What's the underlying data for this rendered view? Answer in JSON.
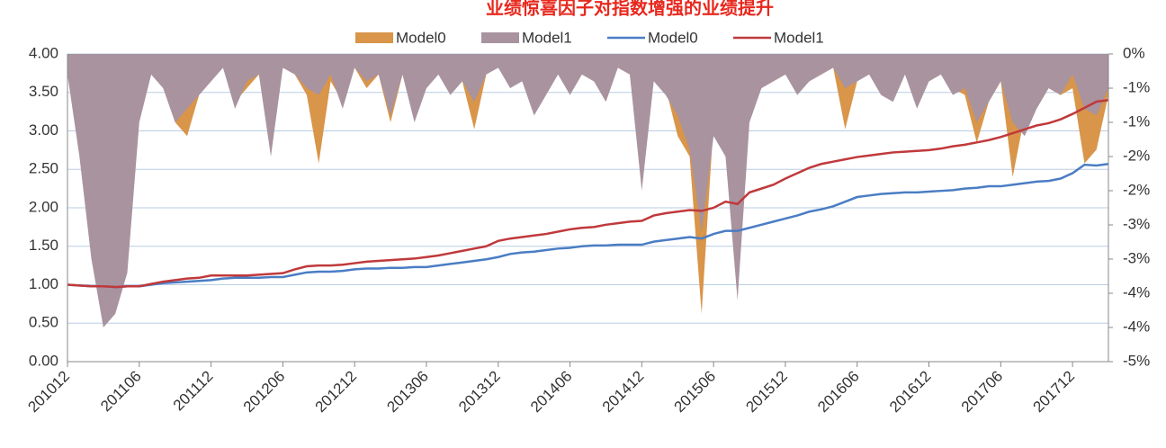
{
  "chart_data": {
    "type": "combo",
    "title": "业绩惊喜因子对指数增强的业绩提升",
    "categories": [
      "201012",
      null,
      null,
      null,
      null,
      null,
      "201106",
      null,
      null,
      null,
      null,
      null,
      "201112",
      null,
      null,
      null,
      null,
      null,
      "201206",
      null,
      null,
      null,
      null,
      null,
      "201212",
      null,
      null,
      null,
      null,
      null,
      "201306",
      null,
      null,
      null,
      null,
      null,
      "201312",
      null,
      null,
      null,
      null,
      null,
      "201406",
      null,
      null,
      null,
      null,
      null,
      "201412",
      null,
      null,
      null,
      null,
      null,
      "201506",
      null,
      null,
      null,
      null,
      null,
      "201512",
      null,
      null,
      null,
      null,
      null,
      "201606",
      null,
      null,
      null,
      null,
      null,
      "201612",
      null,
      null,
      null,
      null,
      null,
      "201706",
      null,
      null,
      null,
      null,
      null,
      "201712",
      null,
      null,
      null
    ],
    "series": [
      {
        "name": "Model0",
        "type": "area",
        "axis": "y2",
        "color": "#d9954a",
        "values": [
          -0.3,
          -1.0,
          -2.0,
          -3.0,
          -3.0,
          -2.5,
          -0.8,
          -0.3,
          -0.5,
          -1.0,
          -1.2,
          -0.6,
          -0.4,
          -0.2,
          -0.7,
          -0.5,
          -0.3,
          -1.2,
          -0.2,
          -0.3,
          -0.6,
          -1.6,
          -0.4,
          -0.7,
          -0.2,
          -0.5,
          -0.3,
          -1.0,
          -0.3,
          -0.9,
          -0.5,
          -0.3,
          -0.5,
          -0.4,
          -1.1,
          -0.3,
          -0.2,
          -0.4,
          -0.4,
          -0.7,
          -0.5,
          -0.3,
          -0.5,
          -0.3,
          -0.4,
          -0.6,
          -0.2,
          -0.3,
          -1.8,
          -0.3,
          -0.5,
          -1.2,
          -1.5,
          -3.8,
          -1.0,
          -1.2,
          -2.8,
          -0.9,
          -0.5,
          -0.4,
          -0.3,
          -0.5,
          -0.4,
          -0.3,
          -0.2,
          -1.1,
          -0.4,
          -0.3,
          -0.5,
          -0.6,
          -0.3,
          -0.7,
          -0.4,
          -0.3,
          -0.5,
          -0.6,
          -1.3,
          -0.7,
          -0.4,
          -1.8,
          -0.9,
          -0.8,
          -0.5,
          -0.6,
          -0.5,
          -1.6,
          -1.4,
          -0.6
        ]
      },
      {
        "name": "Model1",
        "type": "area",
        "axis": "y2",
        "color": "#a8939f",
        "values": [
          -0.3,
          -1.5,
          -3.0,
          -4.0,
          -3.8,
          -3.2,
          -1.0,
          -0.3,
          -0.5,
          -1.0,
          -0.8,
          -0.6,
          -0.4,
          -0.2,
          -0.8,
          -0.4,
          -0.3,
          -1.5,
          -0.2,
          -0.3,
          -0.5,
          -0.6,
          -0.3,
          -0.8,
          -0.2,
          -0.4,
          -0.3,
          -0.9,
          -0.3,
          -1.0,
          -0.5,
          -0.3,
          -0.6,
          -0.4,
          -0.7,
          -0.3,
          -0.2,
          -0.5,
          -0.4,
          -0.9,
          -0.6,
          -0.3,
          -0.6,
          -0.3,
          -0.4,
          -0.7,
          -0.2,
          -0.3,
          -2.0,
          -0.4,
          -0.6,
          -0.9,
          -1.4,
          -2.6,
          -1.2,
          -1.5,
          -3.6,
          -1.0,
          -0.5,
          -0.4,
          -0.3,
          -0.6,
          -0.4,
          -0.3,
          -0.2,
          -0.5,
          -0.4,
          -0.3,
          -0.6,
          -0.7,
          -0.3,
          -0.8,
          -0.4,
          -0.3,
          -0.6,
          -0.5,
          -1.0,
          -0.7,
          -0.4,
          -1.0,
          -1.2,
          -0.8,
          -0.5,
          -0.6,
          -0.3,
          -0.8,
          -0.9,
          -0.5
        ]
      },
      {
        "name": "Model0",
        "type": "line",
        "color": "#4a7dc4",
        "values": [
          1.0,
          0.99,
          0.98,
          0.98,
          0.97,
          0.98,
          0.98,
          1.0,
          1.02,
          1.03,
          1.04,
          1.05,
          1.06,
          1.08,
          1.09,
          1.09,
          1.09,
          1.1,
          1.1,
          1.13,
          1.16,
          1.17,
          1.17,
          1.18,
          1.2,
          1.21,
          1.21,
          1.22,
          1.22,
          1.23,
          1.23,
          1.25,
          1.27,
          1.29,
          1.31,
          1.33,
          1.36,
          1.4,
          1.42,
          1.43,
          1.45,
          1.47,
          1.48,
          1.5,
          1.51,
          1.51,
          1.52,
          1.52,
          1.52,
          1.56,
          1.58,
          1.6,
          1.62,
          1.6,
          1.66,
          1.7,
          1.7,
          1.74,
          1.78,
          1.82,
          1.86,
          1.9,
          1.95,
          1.98,
          2.02,
          2.08,
          2.14,
          2.16,
          2.18,
          2.19,
          2.2,
          2.2,
          2.21,
          2.22,
          2.23,
          2.25,
          2.26,
          2.28,
          2.28,
          2.3,
          2.32,
          2.34,
          2.35,
          2.38,
          2.45,
          2.56,
          2.55,
          2.57
        ]
      },
      {
        "name": "Model1",
        "type": "line",
        "color": "#c0393b",
        "values": [
          1.0,
          0.99,
          0.98,
          0.98,
          0.97,
          0.98,
          0.98,
          1.01,
          1.04,
          1.06,
          1.08,
          1.09,
          1.12,
          1.12,
          1.12,
          1.12,
          1.13,
          1.14,
          1.15,
          1.2,
          1.24,
          1.25,
          1.25,
          1.26,
          1.28,
          1.3,
          1.31,
          1.32,
          1.33,
          1.34,
          1.36,
          1.38,
          1.41,
          1.44,
          1.47,
          1.5,
          1.57,
          1.6,
          1.62,
          1.64,
          1.66,
          1.69,
          1.72,
          1.74,
          1.75,
          1.78,
          1.8,
          1.82,
          1.83,
          1.9,
          1.93,
          1.95,
          1.97,
          1.96,
          2.0,
          2.08,
          2.05,
          2.2,
          2.25,
          2.3,
          2.38,
          2.45,
          2.52,
          2.57,
          2.6,
          2.63,
          2.66,
          2.68,
          2.7,
          2.72,
          2.73,
          2.74,
          2.75,
          2.77,
          2.8,
          2.82,
          2.85,
          2.88,
          2.92,
          2.97,
          3.02,
          3.07,
          3.1,
          3.15,
          3.22,
          3.3,
          3.38,
          3.4
        ]
      }
    ],
    "ylim": [
      0,
      4
    ],
    "yticks": [
      {
        "value": 0,
        "label": "0.00"
      },
      {
        "value": 0.5,
        "label": "0.50"
      },
      {
        "value": 1,
        "label": "1.00"
      },
      {
        "value": 1.5,
        "label": "1.50"
      },
      {
        "value": 2,
        "label": "2.00"
      },
      {
        "value": 2.5,
        "label": "2.50"
      },
      {
        "value": 3,
        "label": "3.00"
      },
      {
        "value": 3.5,
        "label": "3.50"
      },
      {
        "value": 4,
        "label": "4.00"
      }
    ],
    "y2lim": [
      -4.5,
      0
    ],
    "y2ticks": [
      {
        "value": 0,
        "label": "0%"
      },
      {
        "value": -0.5,
        "label": "-1%"
      },
      {
        "value": -1,
        "label": "-1%"
      },
      {
        "value": -1.5,
        "label": "-2%"
      },
      {
        "value": -2,
        "label": "-2%"
      },
      {
        "value": -2.5,
        "label": "-3%"
      },
      {
        "value": -3,
        "label": "-3%"
      },
      {
        "value": -3.5,
        "label": "-4%"
      },
      {
        "value": -4,
        "label": "-4%"
      },
      {
        "value": -4.5,
        "label": "-5%"
      }
    ],
    "grid": true,
    "legend": "top"
  }
}
